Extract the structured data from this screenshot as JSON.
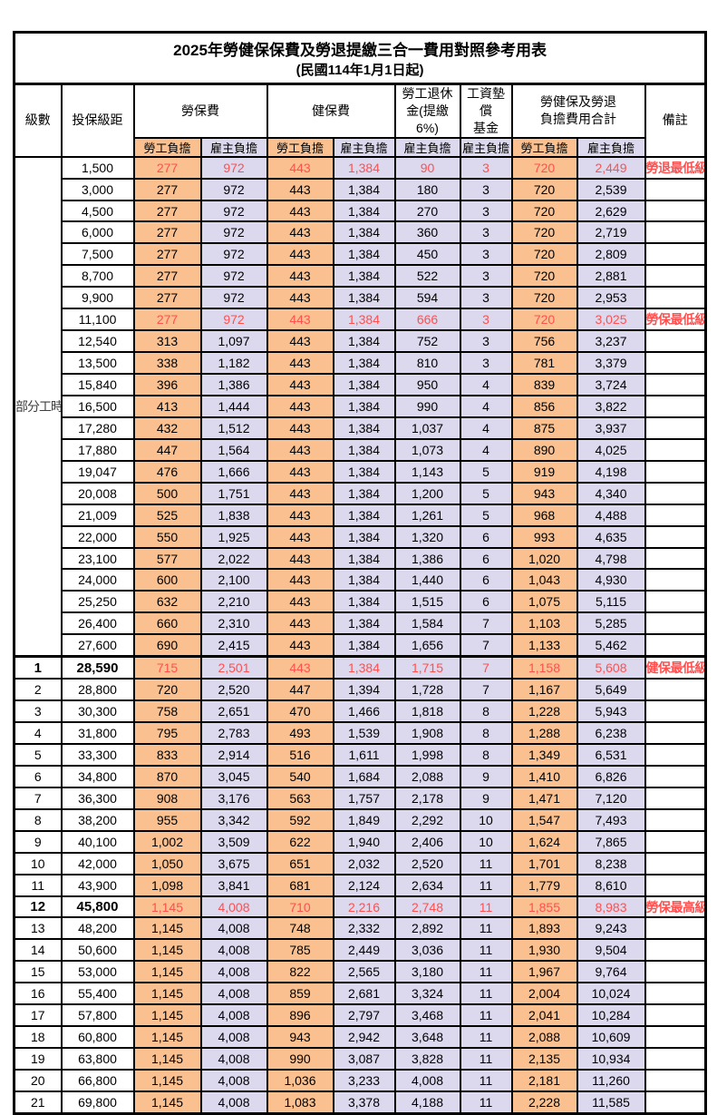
{
  "table": {
    "title": "2025年勞健保保費及勞退提繳三合一費用對照參考用表",
    "subtitle": "(民國114年1月1日起)",
    "header": {
      "level": "級數",
      "salary": "投保級距",
      "labor": "勞保費",
      "health": "健保費",
      "pension_l1": "勞工退休",
      "pension_l2": "金(提繳6%)",
      "fund_l1": "工資墊償",
      "fund_l2": "基金",
      "total_l1": "勞健保及勞退",
      "total_l2": "負擔費用合計",
      "note": "備註",
      "employee": "勞工負擔",
      "employer": "雇主負擔"
    },
    "part_time": {
      "label": "部分工時",
      "span": 23
    },
    "colors": {
      "employee_bg": "#FAC090",
      "employer_bg": "#DCD8EE",
      "highlight_text": "#FF5050"
    },
    "rows": [
      {
        "lvl": "",
        "sal": "1,500",
        "v": [
          "277",
          "972",
          "443",
          "1,384",
          "90",
          "3",
          "720",
          "2,449"
        ],
        "note": "勞退最低級距",
        "hl": true,
        "bold": false
      },
      {
        "lvl": null,
        "sal": "3,000",
        "v": [
          "277",
          "972",
          "443",
          "1,384",
          "180",
          "3",
          "720",
          "2,539"
        ],
        "note": "",
        "hl": false,
        "bold": false
      },
      {
        "lvl": null,
        "sal": "4,500",
        "v": [
          "277",
          "972",
          "443",
          "1,384",
          "270",
          "3",
          "720",
          "2,629"
        ],
        "note": "",
        "hl": false,
        "bold": false
      },
      {
        "lvl": null,
        "sal": "6,000",
        "v": [
          "277",
          "972",
          "443",
          "1,384",
          "360",
          "3",
          "720",
          "2,719"
        ],
        "note": "",
        "hl": false,
        "bold": false
      },
      {
        "lvl": null,
        "sal": "7,500",
        "v": [
          "277",
          "972",
          "443",
          "1,384",
          "450",
          "3",
          "720",
          "2,809"
        ],
        "note": "",
        "hl": false,
        "bold": false
      },
      {
        "lvl": null,
        "sal": "8,700",
        "v": [
          "277",
          "972",
          "443",
          "1,384",
          "522",
          "3",
          "720",
          "2,881"
        ],
        "note": "",
        "hl": false,
        "bold": false
      },
      {
        "lvl": null,
        "sal": "9,900",
        "v": [
          "277",
          "972",
          "443",
          "1,384",
          "594",
          "3",
          "720",
          "2,953"
        ],
        "note": "",
        "hl": false,
        "bold": false
      },
      {
        "lvl": null,
        "sal": "11,100",
        "v": [
          "277",
          "972",
          "443",
          "1,384",
          "666",
          "3",
          "720",
          "3,025"
        ],
        "note": "勞保最低級距",
        "hl": true,
        "bold": false
      },
      {
        "lvl": null,
        "sal": "12,540",
        "v": [
          "313",
          "1,097",
          "443",
          "1,384",
          "752",
          "3",
          "756",
          "3,237"
        ],
        "note": "",
        "hl": false,
        "bold": false
      },
      {
        "lvl": null,
        "sal": "13,500",
        "v": [
          "338",
          "1,182",
          "443",
          "1,384",
          "810",
          "3",
          "781",
          "3,379"
        ],
        "note": "",
        "hl": false,
        "bold": false
      },
      {
        "lvl": null,
        "sal": "15,840",
        "v": [
          "396",
          "1,386",
          "443",
          "1,384",
          "950",
          "4",
          "839",
          "3,724"
        ],
        "note": "",
        "hl": false,
        "bold": false
      },
      {
        "lvl": null,
        "sal": "16,500",
        "v": [
          "413",
          "1,444",
          "443",
          "1,384",
          "990",
          "4",
          "856",
          "3,822"
        ],
        "note": "",
        "hl": false,
        "bold": false
      },
      {
        "lvl": null,
        "sal": "17,280",
        "v": [
          "432",
          "1,512",
          "443",
          "1,384",
          "1,037",
          "4",
          "875",
          "3,937"
        ],
        "note": "",
        "hl": false,
        "bold": false
      },
      {
        "lvl": null,
        "sal": "17,880",
        "v": [
          "447",
          "1,564",
          "443",
          "1,384",
          "1,073",
          "4",
          "890",
          "4,025"
        ],
        "note": "",
        "hl": false,
        "bold": false
      },
      {
        "lvl": null,
        "sal": "19,047",
        "v": [
          "476",
          "1,666",
          "443",
          "1,384",
          "1,143",
          "5",
          "919",
          "4,198"
        ],
        "note": "",
        "hl": false,
        "bold": false
      },
      {
        "lvl": null,
        "sal": "20,008",
        "v": [
          "500",
          "1,751",
          "443",
          "1,384",
          "1,200",
          "5",
          "943",
          "4,340"
        ],
        "note": "",
        "hl": false,
        "bold": false
      },
      {
        "lvl": null,
        "sal": "21,009",
        "v": [
          "525",
          "1,838",
          "443",
          "1,384",
          "1,261",
          "5",
          "968",
          "4,488"
        ],
        "note": "",
        "hl": false,
        "bold": false
      },
      {
        "lvl": null,
        "sal": "22,000",
        "v": [
          "550",
          "1,925",
          "443",
          "1,384",
          "1,320",
          "6",
          "993",
          "4,635"
        ],
        "note": "",
        "hl": false,
        "bold": false
      },
      {
        "lvl": null,
        "sal": "23,100",
        "v": [
          "577",
          "2,022",
          "443",
          "1,384",
          "1,386",
          "6",
          "1,020",
          "4,798"
        ],
        "note": "",
        "hl": false,
        "bold": false
      },
      {
        "lvl": null,
        "sal": "24,000",
        "v": [
          "600",
          "2,100",
          "443",
          "1,384",
          "1,440",
          "6",
          "1,043",
          "4,930"
        ],
        "note": "",
        "hl": false,
        "bold": false
      },
      {
        "lvl": null,
        "sal": "25,250",
        "v": [
          "632",
          "2,210",
          "443",
          "1,384",
          "1,515",
          "6",
          "1,075",
          "5,115"
        ],
        "note": "",
        "hl": false,
        "bold": false
      },
      {
        "lvl": null,
        "sal": "26,400",
        "v": [
          "660",
          "2,310",
          "443",
          "1,384",
          "1,584",
          "7",
          "1,103",
          "5,285"
        ],
        "note": "",
        "hl": false,
        "bold": false
      },
      {
        "lvl": null,
        "sal": "27,600",
        "v": [
          "690",
          "2,415",
          "443",
          "1,384",
          "1,656",
          "7",
          "1,133",
          "5,462"
        ],
        "note": "",
        "hl": false,
        "bold": false
      },
      {
        "lvl": "1",
        "sal": "28,590",
        "v": [
          "715",
          "2,501",
          "443",
          "1,384",
          "1,715",
          "7",
          "1,158",
          "5,608"
        ],
        "note": "健保最低級距",
        "hl": true,
        "bold": true,
        "sect": true
      },
      {
        "lvl": "2",
        "sal": "28,800",
        "v": [
          "720",
          "2,520",
          "447",
          "1,394",
          "1,728",
          "7",
          "1,167",
          "5,649"
        ],
        "note": "",
        "hl": false,
        "bold": false
      },
      {
        "lvl": "3",
        "sal": "30,300",
        "v": [
          "758",
          "2,651",
          "470",
          "1,466",
          "1,818",
          "8",
          "1,228",
          "5,943"
        ],
        "note": "",
        "hl": false,
        "bold": false
      },
      {
        "lvl": "4",
        "sal": "31,800",
        "v": [
          "795",
          "2,783",
          "493",
          "1,539",
          "1,908",
          "8",
          "1,288",
          "6,238"
        ],
        "note": "",
        "hl": false,
        "bold": false
      },
      {
        "lvl": "5",
        "sal": "33,300",
        "v": [
          "833",
          "2,914",
          "516",
          "1,611",
          "1,998",
          "8",
          "1,349",
          "6,531"
        ],
        "note": "",
        "hl": false,
        "bold": false
      },
      {
        "lvl": "6",
        "sal": "34,800",
        "v": [
          "870",
          "3,045",
          "540",
          "1,684",
          "2,088",
          "9",
          "1,410",
          "6,826"
        ],
        "note": "",
        "hl": false,
        "bold": false
      },
      {
        "lvl": "7",
        "sal": "36,300",
        "v": [
          "908",
          "3,176",
          "563",
          "1,757",
          "2,178",
          "9",
          "1,471",
          "7,120"
        ],
        "note": "",
        "hl": false,
        "bold": false
      },
      {
        "lvl": "8",
        "sal": "38,200",
        "v": [
          "955",
          "3,342",
          "592",
          "1,849",
          "2,292",
          "10",
          "1,547",
          "7,493"
        ],
        "note": "",
        "hl": false,
        "bold": false
      },
      {
        "lvl": "9",
        "sal": "40,100",
        "v": [
          "1,002",
          "3,509",
          "622",
          "1,940",
          "2,406",
          "10",
          "1,624",
          "7,865"
        ],
        "note": "",
        "hl": false,
        "bold": false
      },
      {
        "lvl": "10",
        "sal": "42,000",
        "v": [
          "1,050",
          "3,675",
          "651",
          "2,032",
          "2,520",
          "11",
          "1,701",
          "8,238"
        ],
        "note": "",
        "hl": false,
        "bold": false
      },
      {
        "lvl": "11",
        "sal": "43,900",
        "v": [
          "1,098",
          "3,841",
          "681",
          "2,124",
          "2,634",
          "11",
          "1,779",
          "8,610"
        ],
        "note": "",
        "hl": false,
        "bold": false
      },
      {
        "lvl": "12",
        "sal": "45,800",
        "v": [
          "1,145",
          "4,008",
          "710",
          "2,216",
          "2,748",
          "11",
          "1,855",
          "8,983"
        ],
        "note": "勞保最高級距",
        "hl": true,
        "bold": true
      },
      {
        "lvl": "13",
        "sal": "48,200",
        "v": [
          "1,145",
          "4,008",
          "748",
          "2,332",
          "2,892",
          "11",
          "1,893",
          "9,243"
        ],
        "note": "",
        "hl": false,
        "bold": false
      },
      {
        "lvl": "14",
        "sal": "50,600",
        "v": [
          "1,145",
          "4,008",
          "785",
          "2,449",
          "3,036",
          "11",
          "1,930",
          "9,504"
        ],
        "note": "",
        "hl": false,
        "bold": false
      },
      {
        "lvl": "15",
        "sal": "53,000",
        "v": [
          "1,145",
          "4,008",
          "822",
          "2,565",
          "3,180",
          "11",
          "1,967",
          "9,764"
        ],
        "note": "",
        "hl": false,
        "bold": false
      },
      {
        "lvl": "16",
        "sal": "55,400",
        "v": [
          "1,145",
          "4,008",
          "859",
          "2,681",
          "3,324",
          "11",
          "2,004",
          "10,024"
        ],
        "note": "",
        "hl": false,
        "bold": false
      },
      {
        "lvl": "17",
        "sal": "57,800",
        "v": [
          "1,145",
          "4,008",
          "896",
          "2,797",
          "3,468",
          "11",
          "2,041",
          "10,284"
        ],
        "note": "",
        "hl": false,
        "bold": false
      },
      {
        "lvl": "18",
        "sal": "60,800",
        "v": [
          "1,145",
          "4,008",
          "943",
          "2,942",
          "3,648",
          "11",
          "2,088",
          "10,609"
        ],
        "note": "",
        "hl": false,
        "bold": false
      },
      {
        "lvl": "19",
        "sal": "63,800",
        "v": [
          "1,145",
          "4,008",
          "990",
          "3,087",
          "3,828",
          "11",
          "2,135",
          "10,934"
        ],
        "note": "",
        "hl": false,
        "bold": false
      },
      {
        "lvl": "20",
        "sal": "66,800",
        "v": [
          "1,145",
          "4,008",
          "1,036",
          "3,233",
          "4,008",
          "11",
          "2,181",
          "11,260"
        ],
        "note": "",
        "hl": false,
        "bold": false
      },
      {
        "lvl": "21",
        "sal": "69,800",
        "v": [
          "1,145",
          "4,008",
          "1,083",
          "3,378",
          "4,188",
          "11",
          "2,228",
          "11,585"
        ],
        "note": "",
        "hl": false,
        "bold": false
      }
    ]
  }
}
